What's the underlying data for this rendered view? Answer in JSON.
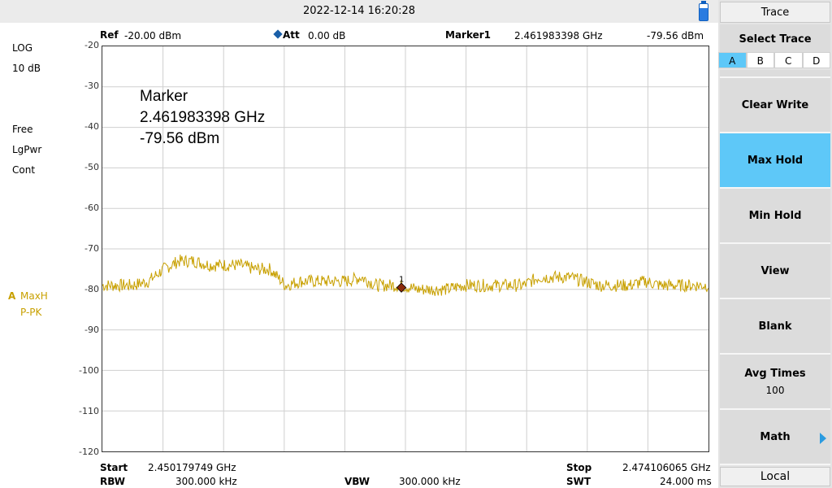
{
  "status": {
    "datetime": "2022-12-14   16:20:28"
  },
  "header": {
    "ref_label": "Ref",
    "ref_value": "-20.00 dBm",
    "att_label": "Att",
    "att_value": "0.00 dB",
    "marker_label": "Marker1",
    "marker_freq": "2.461983398 GHz",
    "marker_level": "-79.56 dBm"
  },
  "left_panel": {
    "scale": "LOG",
    "div": "10 dB",
    "sweep": "Free",
    "detector_type": "LgPwr",
    "mode": "Cont",
    "trace_letter": "A",
    "trace_mode": "MaxH",
    "detector": "P-PK"
  },
  "overlay": {
    "title": "Marker",
    "freq": "2.461983398 GHz",
    "level": "-79.56 dBm",
    "marker_num": "1"
  },
  "footer": {
    "start_label": "Start",
    "start_value": "2.450179749 GHz",
    "stop_label": "Stop",
    "stop_value": "2.474106065 GHz",
    "rbw_label": "RBW",
    "rbw_value": "300.000 kHz",
    "vbw_label": "VBW",
    "vbw_value": "300.000 kHz",
    "swt_label": "SWT",
    "swt_value": "24.000 ms"
  },
  "softkeys": {
    "title": "Trace",
    "select_trace": "Select Trace",
    "trace_options": [
      "A",
      "B",
      "C",
      "D"
    ],
    "selected_trace": "A",
    "clear_write": "Clear Write",
    "max_hold": "Max Hold",
    "min_hold": "Min Hold",
    "view": "View",
    "blank": "Blank",
    "avg_times": "Avg Times",
    "avg_times_value": "100",
    "math": "Math",
    "local": "Local"
  },
  "colors": {
    "trace": "#c8a000",
    "active_key": "#5ec8f8",
    "marker": "#8b2a0a"
  },
  "chart_data": {
    "type": "line",
    "xlim": [
      2.450179749,
      2.474106065
    ],
    "ylim": [
      -120,
      -20
    ],
    "y_ticks": [
      -20,
      -30,
      -40,
      -50,
      -60,
      -70,
      -80,
      -90,
      -100,
      -110,
      -120
    ],
    "grid": true,
    "series": [
      {
        "x": [
          2.4502,
          2.4508,
          2.4514,
          2.452,
          2.4526,
          2.4532,
          2.4538,
          2.4544,
          2.455,
          2.4556,
          2.4562,
          2.4568,
          2.4574,
          2.458,
          2.4586,
          2.4592,
          2.4598,
          2.4604,
          2.461,
          2.4616,
          2.462,
          2.4626,
          2.4632,
          2.4638,
          2.4644,
          2.465,
          2.4656,
          2.4662,
          2.4668,
          2.4674,
          2.468,
          2.4686,
          2.4692,
          2.4698,
          2.4704,
          2.471,
          2.4716,
          2.4722,
          2.4728,
          2.4734,
          2.4741
        ],
        "y": [
          -79,
          -79,
          -79,
          -78,
          -75,
          -73,
          -73,
          -74,
          -74,
          -74,
          -75,
          -75,
          -79,
          -78,
          -78,
          -78,
          -78,
          -77,
          -79,
          -79,
          -79,
          -80,
          -80,
          -80,
          -79,
          -79,
          -79,
          -79,
          -79,
          -77,
          -77,
          -77,
          -78,
          -79,
          -79,
          -79,
          -78,
          -79,
          -79,
          -79,
          -79
        ]
      }
    ],
    "marker": {
      "x": 2.461983398,
      "y": -79.56,
      "label": "1"
    }
  }
}
